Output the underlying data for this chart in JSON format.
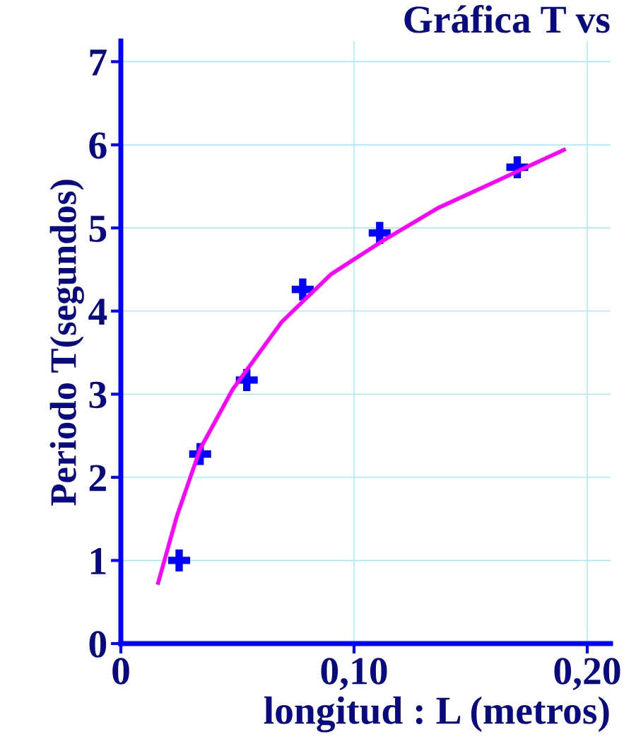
{
  "chart_data": {
    "type": "scatter",
    "title": "Gráfica T vs",
    "xlabel": "longitud : L (metros)",
    "ylabel": "Periodo T(segundos)",
    "xlim": [
      0,
      0.21
    ],
    "ylim": [
      0,
      7.25
    ],
    "xticks": [
      0,
      {
        "value": 0.1,
        "label": "0,10"
      },
      {
        "value": 0.2,
        "label": "0,20"
      }
    ],
    "yticks": [
      0,
      1,
      2,
      3,
      4,
      5,
      6,
      7
    ],
    "grid": true,
    "legend": false,
    "series": [
      {
        "type": "line",
        "color": "#ff00ff",
        "marker": "none",
        "line_style": "solid",
        "x": [
          0.016,
          0.024,
          0.034,
          0.048,
          0.069,
          0.09,
          0.112,
          0.136,
          0.16,
          0.19
        ],
        "values": [
          0.73,
          1.53,
          2.34,
          3.06,
          3.87,
          4.44,
          4.84,
          5.24,
          5.55,
          5.94
        ]
      },
      {
        "color": "#0000ff",
        "marker": "cross",
        "x": [
          0.025,
          0.034,
          0.054,
          0.078,
          0.111,
          0.17
        ],
        "values": [
          1.0,
          2.28,
          3.17,
          4.26,
          4.94,
          5.73
        ]
      }
    ]
  }
}
